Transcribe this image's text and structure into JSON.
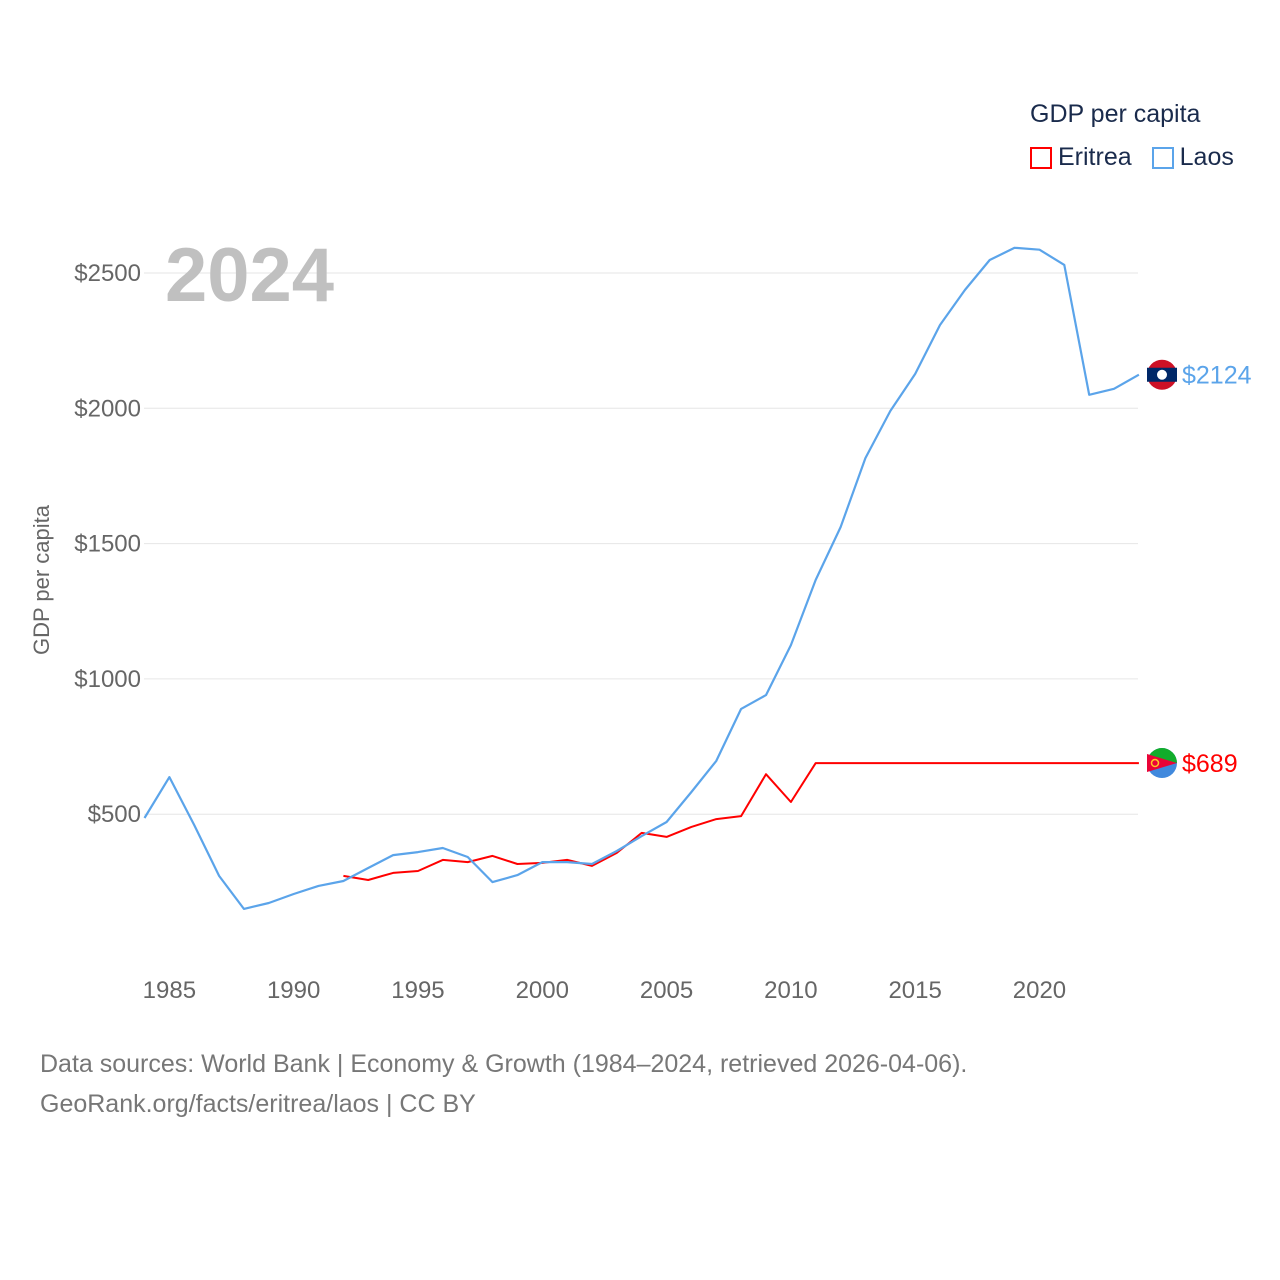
{
  "chart_data": {
    "type": "line",
    "title": "GDP per capita",
    "ylabel": "GDP per capita",
    "xlabel": "",
    "ylim": [
      0,
      2750
    ],
    "xlim": [
      1984,
      2024
    ],
    "grid": true,
    "legend_position": "top-right",
    "year_label": "2024",
    "x_ticks": [
      1985,
      1990,
      1995,
      2000,
      2005,
      2010,
      2015,
      2020
    ],
    "x_tick_labels": [
      "1985",
      "1990",
      "1995",
      "2000",
      "2005",
      "2010",
      "2015",
      "2020"
    ],
    "y_ticks": [
      500,
      1000,
      1500,
      2000,
      2500
    ],
    "y_tick_labels": [
      "$500",
      "$1000",
      "$1500",
      "$2000",
      "$2500"
    ],
    "series": [
      {
        "name": "Eritrea",
        "color": "#ff0000",
        "end_label": "$689",
        "x": [
          1992,
          1993,
          1994,
          1995,
          1996,
          1997,
          1998,
          1999,
          2000,
          2001,
          2002,
          2003,
          2004,
          2005,
          2006,
          2007,
          2008,
          2009,
          2010,
          2011,
          2012,
          2013,
          2014,
          2015,
          2016,
          2017,
          2018,
          2019,
          2020,
          2021,
          2022,
          2023,
          2024
        ],
        "values": [
          272,
          257,
          283,
          290,
          331,
          323,
          346,
          316,
          320,
          331,
          309,
          357,
          431,
          416,
          453,
          482,
          493,
          648,
          545,
          689,
          689,
          689,
          689,
          689,
          689,
          689,
          689,
          689,
          689,
          689,
          689,
          689,
          689
        ]
      },
      {
        "name": "Laos",
        "color": "#5ba4ea",
        "end_label": "$2124",
        "x": [
          1984,
          1985,
          1986,
          1987,
          1988,
          1989,
          1990,
          1991,
          1992,
          1993,
          1994,
          1995,
          1996,
          1997,
          1998,
          1999,
          2000,
          2001,
          2002,
          2003,
          2004,
          2005,
          2006,
          2007,
          2008,
          2009,
          2010,
          2011,
          2012,
          2013,
          2014,
          2015,
          2016,
          2017,
          2018,
          2019,
          2020,
          2021,
          2022,
          2023,
          2024
        ],
        "values": [
          486,
          637,
          460,
          272,
          150,
          172,
          205,
          235,
          253,
          301,
          349,
          360,
          375,
          342,
          249,
          275,
          323,
          323,
          316,
          364,
          419,
          471,
          582,
          697,
          889,
          940,
          1125,
          1366,
          1561,
          1816,
          1990,
          2127,
          2308,
          2437,
          2548,
          2593,
          2586,
          2530,
          2050,
          2072,
          2124
        ]
      }
    ]
  },
  "footer": {
    "line1": "Data sources: World Bank | Economy & Growth (1984–2024, retrieved 2026-04-06).",
    "line2": "GeoRank.org/facts/eritrea/laos | CC BY"
  }
}
